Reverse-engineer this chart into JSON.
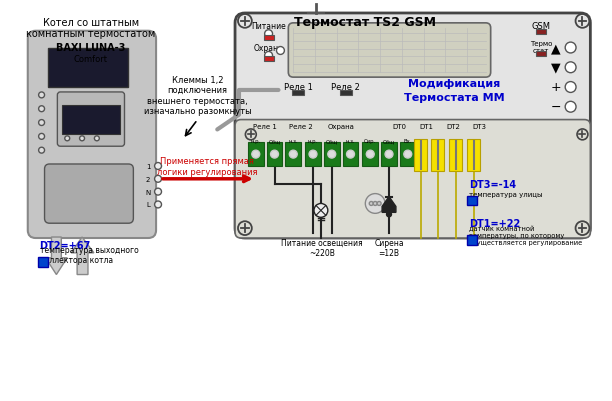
{
  "bg_color": "#ffffff",
  "title_text": "Термостат TS2 GSM",
  "gsm_label": "GSM",
  "termo_label": "Термо\nстат",
  "pitanie_label": "Питание",
  "ohrana_label": "Охрана",
  "rele1_label": "Реле 1",
  "rele2_label": "Реле 2",
  "modif_label": "Модификация\nТермостата ММ",
  "bottom_labels": [
    "Реле 1",
    "Реле 2",
    "Охрана",
    "DT0",
    "DT1",
    "DT2",
    "DT3"
  ],
  "connector_labels": [
    "н.р.",
    "Общ",
    "н.з.",
    "н.р.",
    "Общ",
    "н.з.",
    "Сир.",
    "Общ",
    "Вх."
  ],
  "boiler_title1": "Котел со штатным",
  "boiler_title2": "комнатным термостатом",
  "klemy_text": "Клеммы 1,2\nподключения\nвнешнего термостата,\nизначально разомкнуты",
  "primenyaetsya_text": "Применяется прямая\nлогики регулирования",
  "dt2_label": "DT2=+67",
  "dt2_desc": "температура выходного\nколлектора котла",
  "dt3_label": "DT3=-14",
  "dt3_desc": "температура улицы",
  "dt1_label": "DT1=+22",
  "dt1_desc": "датчик комнатной\nтемпературы, по которому\nосуществляется регулирование",
  "pitanie_osv": "Питание освещения\n~220В",
  "sirena": "Сирена\n=12В",
  "blue_color": "#0000cc",
  "red_color": "#cc0000",
  "dark_color": "#222222",
  "gray_color": "#aaaaaa"
}
